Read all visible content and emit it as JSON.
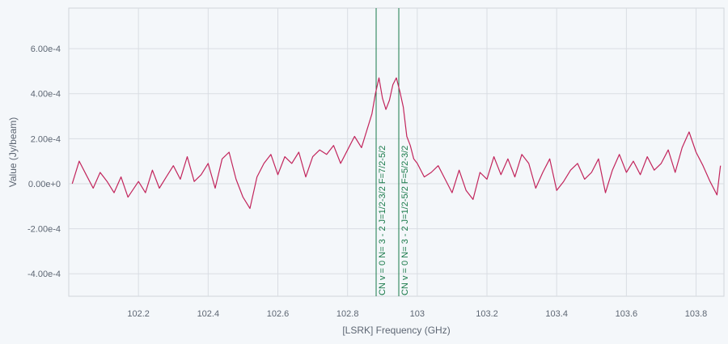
{
  "chart_data": {
    "type": "line",
    "title": "",
    "xlabel": "[LSRK] Frequency (GHz)",
    "ylabel": "Value (Jy/beam)",
    "xlim": [
      102.0,
      103.88
    ],
    "ylim": [
      -0.0005,
      0.00078
    ],
    "grid": true,
    "colors": {
      "series": "#c2255c",
      "lines": "#1a7a4a",
      "grid": "#d9dde3",
      "background": "#f4f7fa"
    },
    "x_ticks": [
      {
        "value": 102.2,
        "label": "102.2"
      },
      {
        "value": 102.4,
        "label": "102.4"
      },
      {
        "value": 102.6,
        "label": "102.6"
      },
      {
        "value": 102.8,
        "label": "102.8"
      },
      {
        "value": 103.0,
        "label": "103"
      },
      {
        "value": 103.2,
        "label": "103.2"
      },
      {
        "value": 103.4,
        "label": "103.4"
      },
      {
        "value": 103.6,
        "label": "103.6"
      },
      {
        "value": 103.8,
        "label": "103.8"
      }
    ],
    "y_ticks": [
      {
        "value": 0.0006,
        "label": "6.00e-4"
      },
      {
        "value": 0.0004,
        "label": "4.00e-4"
      },
      {
        "value": 0.0002,
        "label": "2.00e-4"
      },
      {
        "value": 0.0,
        "label": "0.00e+0"
      },
      {
        "value": -0.0002,
        "label": "-2.00e-4"
      },
      {
        "value": -0.0004,
        "label": "-4.00e-4"
      }
    ],
    "spectral_lines": [
      {
        "freq": 102.882,
        "label": "CN v = 0  N=   3    -   2    J=1/2-3/2   F=7/2-5/2"
      },
      {
        "freq": 102.947,
        "label": "CN v = 0  N=   3    -   2    J=1/2-5/2   F=5/2-3/2"
      }
    ],
    "series": [
      {
        "x": [
          102.01,
          102.03,
          102.05,
          102.07,
          102.09,
          102.11,
          102.13,
          102.15,
          102.17,
          102.2,
          102.22,
          102.24,
          102.26,
          102.28,
          102.3,
          102.32,
          102.34,
          102.36,
          102.38,
          102.4,
          102.42,
          102.44,
          102.46,
          102.48,
          102.5,
          102.52,
          102.54,
          102.56,
          102.58,
          102.6,
          102.62,
          102.64,
          102.66,
          102.68,
          102.7,
          102.72,
          102.74,
          102.76,
          102.78,
          102.8,
          102.82,
          102.84,
          102.86,
          102.87,
          102.88,
          102.89,
          102.9,
          102.91,
          102.92,
          102.93,
          102.94,
          102.95,
          102.96,
          102.97,
          102.98,
          102.99,
          103.0,
          103.02,
          103.04,
          103.06,
          103.08,
          103.1,
          103.12,
          103.14,
          103.16,
          103.18,
          103.2,
          103.22,
          103.24,
          103.26,
          103.28,
          103.3,
          103.32,
          103.34,
          103.36,
          103.38,
          103.4,
          103.42,
          103.44,
          103.46,
          103.48,
          103.5,
          103.52,
          103.54,
          103.56,
          103.58,
          103.6,
          103.62,
          103.64,
          103.66,
          103.68,
          103.7,
          103.72,
          103.74,
          103.76,
          103.78,
          103.8,
          103.82,
          103.84,
          103.86,
          103.87
        ],
        "y": [
          0.0,
          0.0001,
          4e-05,
          -2e-05,
          5e-05,
          1e-05,
          -4e-05,
          3e-05,
          -6e-05,
          1e-05,
          -4e-05,
          6e-05,
          -2e-05,
          3e-05,
          8e-05,
          2e-05,
          0.00012,
          1e-05,
          4e-05,
          9e-05,
          -2e-05,
          0.00011,
          0.00014,
          2e-05,
          -6e-05,
          -0.00011,
          3e-05,
          9e-05,
          0.00013,
          4e-05,
          0.00012,
          9e-05,
          0.00014,
          3e-05,
          0.00012,
          0.00015,
          0.00013,
          0.00017,
          9e-05,
          0.00015,
          0.00021,
          0.00016,
          0.00026,
          0.00031,
          0.0004,
          0.00047,
          0.00038,
          0.00033,
          0.00037,
          0.00044,
          0.00047,
          0.00041,
          0.00034,
          0.00021,
          0.00017,
          0.00011,
          9e-05,
          3e-05,
          5e-05,
          8e-05,
          2e-05,
          -4e-05,
          6e-05,
          -3e-05,
          -7e-05,
          5e-05,
          2e-05,
          0.00012,
          4e-05,
          0.00011,
          3e-05,
          0.00013,
          9e-05,
          -2e-05,
          5e-05,
          0.00011,
          -3e-05,
          1e-05,
          6e-05,
          9e-05,
          2e-05,
          5e-05,
          0.00011,
          -4e-05,
          6e-05,
          0.00013,
          5e-05,
          0.0001,
          4e-05,
          0.00012,
          6e-05,
          9e-05,
          0.00015,
          5e-05,
          0.00016,
          0.00023,
          0.00014,
          8e-05,
          1e-05,
          -5e-05,
          8e-05
        ]
      }
    ]
  }
}
